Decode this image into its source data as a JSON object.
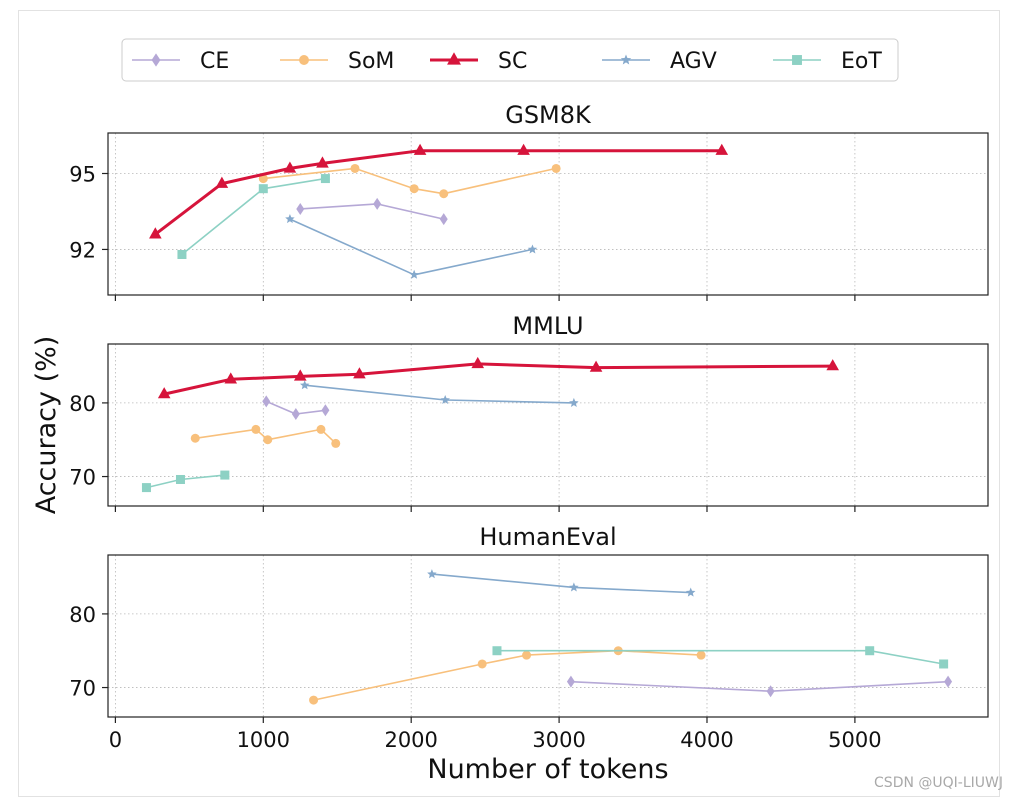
{
  "watermark": "CSDN @UQI-LIUWJ",
  "chart_data": {
    "type": "line",
    "ylabel": "Accuracy (%)",
    "xlabel": "Number of tokens",
    "xlim": [
      -50,
      5900
    ],
    "xticks": [
      0,
      1000,
      2000,
      3000,
      4000,
      5000
    ],
    "legend": {
      "placement": "top-center",
      "entries": [
        {
          "name": "CE",
          "color": "#b5a8d6",
          "marker": "diamond"
        },
        {
          "name": "SoM",
          "color": "#f8c07c",
          "marker": "circle"
        },
        {
          "name": "SC",
          "color": "#d6143b",
          "marker": "triangle"
        },
        {
          "name": "AGV",
          "color": "#85a9cc",
          "marker": "star"
        },
        {
          "name": "EoT",
          "color": "#8dd1c4",
          "marker": "square"
        }
      ]
    },
    "panels": [
      {
        "title": "GSM8K",
        "ylim": [
          90.2,
          96.6
        ],
        "yticks": [
          92,
          95
        ],
        "series": [
          {
            "name": "CE",
            "x": [
              1250,
              1770,
              2220
            ],
            "y": [
              93.6,
              93.8,
              93.2
            ]
          },
          {
            "name": "SoM",
            "x": [
              1000,
              1620,
              2020,
              2220,
              2980
            ],
            "y": [
              94.8,
              95.2,
              94.4,
              94.2,
              95.2
            ]
          },
          {
            "name": "SC",
            "x": [
              270,
              720,
              1180,
              1400,
              2060,
              2760,
              4100
            ],
            "y": [
              92.6,
              94.6,
              95.2,
              95.4,
              95.9,
              95.9,
              95.9
            ]
          },
          {
            "name": "AGV",
            "x": [
              1180,
              2020,
              2820
            ],
            "y": [
              93.2,
              91.0,
              92.0
            ]
          },
          {
            "name": "EoT",
            "x": [
              450,
              1000,
              1420
            ],
            "y": [
              91.8,
              94.4,
              94.8
            ]
          }
        ]
      },
      {
        "title": "MMLU",
        "ylim": [
          66,
          88
        ],
        "yticks": [
          70,
          80
        ],
        "series": [
          {
            "name": "CE",
            "x": [
              1020,
              1220,
              1420
            ],
            "y": [
              80.2,
              78.5,
              79.0
            ]
          },
          {
            "name": "SoM",
            "x": [
              540,
              950,
              1030,
              1390,
              1490
            ],
            "y": [
              75.2,
              76.4,
              75.0,
              76.4,
              74.5
            ]
          },
          {
            "name": "SC",
            "x": [
              330,
              780,
              1250,
              1650,
              2450,
              3250,
              4850
            ],
            "y": [
              81.2,
              83.2,
              83.6,
              83.9,
              85.3,
              84.8,
              85.0
            ]
          },
          {
            "name": "AGV",
            "x": [
              1280,
              2230,
              3100
            ],
            "y": [
              82.4,
              80.4,
              80.0
            ]
          },
          {
            "name": "EoT",
            "x": [
              210,
              440,
              740
            ],
            "y": [
              68.5,
              69.6,
              70.2
            ]
          }
        ]
      },
      {
        "title": "HumanEval",
        "ylim": [
          66,
          88
        ],
        "yticks": [
          70,
          80
        ],
        "series": [
          {
            "name": "CE",
            "x": [
              3080,
              4430,
              5630
            ],
            "y": [
              70.8,
              69.5,
              70.8
            ]
          },
          {
            "name": "SoM",
            "x": [
              1340,
              2480,
              2780,
              3400,
              3960
            ],
            "y": [
              68.3,
              73.2,
              74.4,
              75.0,
              74.4
            ]
          },
          {
            "name": "SC",
            "x": [],
            "y": []
          },
          {
            "name": "AGV",
            "x": [
              2140,
              3100,
              3890
            ],
            "y": [
              85.4,
              83.6,
              82.9
            ]
          },
          {
            "name": "EoT",
            "x": [
              2580,
              5100,
              5600
            ],
            "y": [
              75.0,
              75.0,
              73.2
            ]
          }
        ]
      }
    ]
  }
}
